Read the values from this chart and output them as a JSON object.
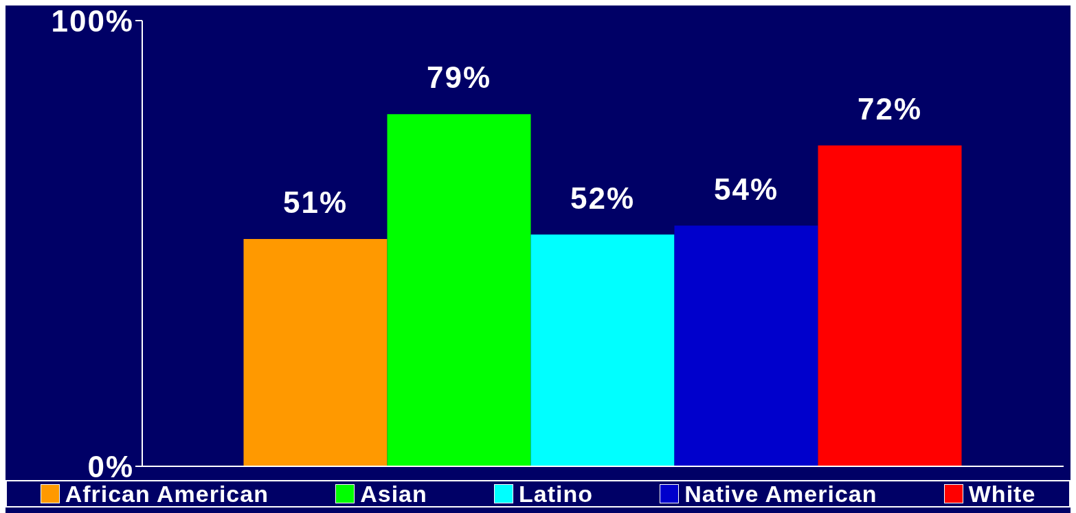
{
  "chart_data": {
    "type": "bar",
    "categories": [
      null
    ],
    "series": [
      {
        "name": "African American",
        "color": "#ff9900",
        "values": [
          51
        ],
        "value_labels": [
          "51%"
        ]
      },
      {
        "name": "Asian",
        "color": "#00ff00",
        "values": [
          79
        ],
        "value_labels": [
          "79%"
        ]
      },
      {
        "name": "Latino",
        "color": "#00ffff",
        "values": [
          52
        ],
        "value_labels": [
          "52%"
        ]
      },
      {
        "name": "Native American",
        "color": "#0000cc",
        "values": [
          54
        ],
        "value_labels": [
          "54%"
        ]
      },
      {
        "name": "White",
        "color": "#ff0000",
        "values": [
          72
        ],
        "value_labels": [
          "72%"
        ]
      }
    ],
    "ylim": [
      0,
      100
    ],
    "yticks": [
      {
        "value": 0,
        "label": "0%"
      },
      {
        "value": 100,
        "label": "100%"
      }
    ],
    "grid": false,
    "legend": "bottom"
  }
}
